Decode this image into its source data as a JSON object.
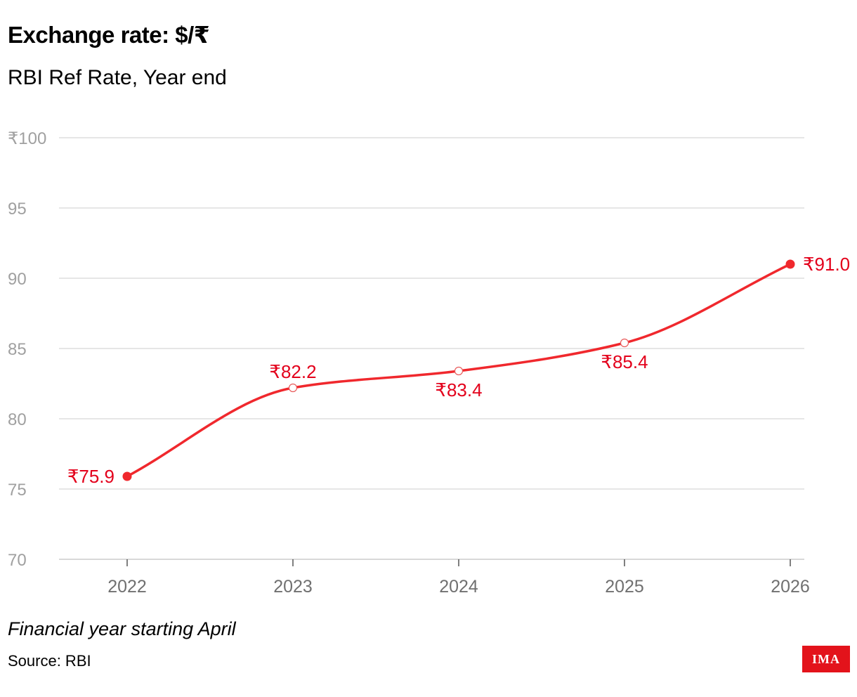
{
  "title": "Exchange rate: $/₹",
  "subtitle": "RBI Ref Rate, Year end",
  "note": "Financial year starting April",
  "source": "Source: RBI",
  "logo_text": "IMA",
  "colors": {
    "series": "#f0282d",
    "label": "#e3001b",
    "grid": "#dddddd",
    "axis_text": "#a0a0a0",
    "x_text": "#707070",
    "logo_bg": "#e3131b"
  },
  "chart_data": {
    "type": "line",
    "title": "Exchange rate: $/₹",
    "subtitle": "RBI Ref Rate, Year end",
    "x": [
      "2022",
      "2023",
      "2024",
      "2025",
      "2026"
    ],
    "series": [
      {
        "values": [
          75.9,
          82.2,
          83.4,
          85.4,
          91.0
        ]
      }
    ],
    "data_labels": [
      "₹75.9",
      "₹82.2",
      "₹83.4",
      "₹85.4",
      "₹91.0"
    ],
    "ylim": [
      70,
      100
    ],
    "y_ticks": [
      70,
      75,
      80,
      85,
      90,
      95,
      100
    ],
    "y_tick_labels": [
      "70",
      "75",
      "80",
      "85",
      "90",
      "95",
      "₹100"
    ],
    "grid": true,
    "legend": "none"
  }
}
